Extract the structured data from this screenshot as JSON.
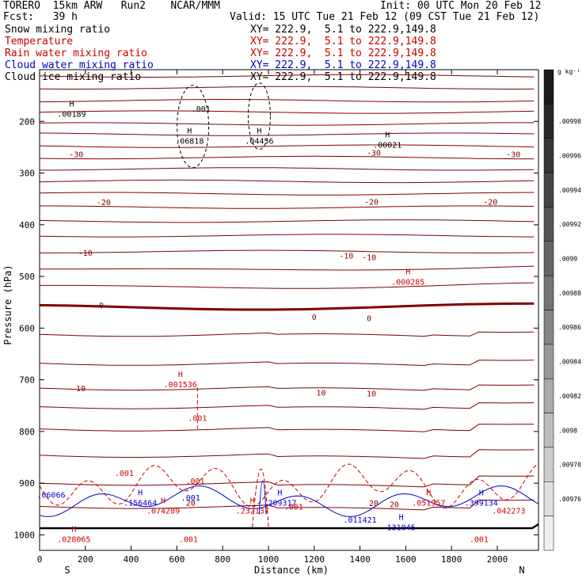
{
  "header": {
    "model": "TORERO  15km ARW   Run2    NCAR/MMM",
    "init": "Init: 00 UTC Mon 20 Feb 12",
    "fcst": "Fcst:   39 h",
    "valid": "Valid: 15 UTC Tue 21 Feb 12 (09 CST Tue 21 Feb 12)",
    "xy": "XY= 222.9,  5.1 to 222.9,149.8",
    "fields": [
      {
        "name": "Snow mixing ratio",
        "color": "#000000"
      },
      {
        "name": "Temperature",
        "color": "#cc0000"
      },
      {
        "name": "Rain water mixing ratio",
        "color": "#cc0000"
      },
      {
        "name": "Cloud water mixing ratio",
        "color": "#0000cc"
      },
      {
        "name": "Cloud ice mixing ratio",
        "color": "#000000"
      }
    ]
  },
  "chart_data": {
    "type": "contour-cross-section",
    "xlabel": "Distance (km)",
    "ylabel": "Pressure (hPa)",
    "xlim": [
      0,
      2180
    ],
    "ylim": [
      1030,
      100
    ],
    "x_ticks": [
      0,
      200,
      400,
      600,
      800,
      1000,
      1200,
      1400,
      1600,
      1800,
      2000
    ],
    "y_ticks": [
      200,
      300,
      400,
      500,
      600,
      700,
      800,
      900,
      1000
    ],
    "x_end_labels": {
      "left": "S",
      "right": "N"
    },
    "colorbar": {
      "unit": "g kg⁻¹",
      "labels": [
        ".00998",
        ".00996",
        ".00994",
        ".00992",
        ".0099",
        ".00988",
        ".00986",
        ".00984",
        ".00982",
        ".0098",
        ".00978",
        ".00976"
      ],
      "shades": [
        "#1a1a1a",
        "#282828",
        "#363636",
        "#454545",
        "#555555",
        "#656565",
        "#757575",
        "#868686",
        "#989898",
        "#aaaaaa",
        "#bcbcbc",
        "#cecece",
        "#e0e0e0",
        "#f0f0f0"
      ]
    },
    "temperature_labels": [
      {
        "text": "-30",
        "x": 160,
        "p": 263
      },
      {
        "text": "-30",
        "x": 1460,
        "p": 260
      },
      {
        "text": "-30",
        "x": 2070,
        "p": 263
      },
      {
        "text": "-20",
        "x": 280,
        "p": 356
      },
      {
        "text": "-20",
        "x": 1450,
        "p": 355
      },
      {
        "text": "-20",
        "x": 1970,
        "p": 355
      },
      {
        "text": "-10",
        "x": 200,
        "p": 454
      },
      {
        "text": "-10",
        "x": 1340,
        "p": 459
      },
      {
        "text": "-10",
        "x": 1440,
        "p": 462
      },
      {
        "text": "0",
        "x": 270,
        "p": 555
      },
      {
        "text": "0",
        "x": 1200,
        "p": 578
      },
      {
        "text": "0",
        "x": 1440,
        "p": 580
      },
      {
        "text": "10",
        "x": 180,
        "p": 716
      },
      {
        "text": "10",
        "x": 1230,
        "p": 724
      },
      {
        "text": "10",
        "x": 1450,
        "p": 726
      },
      {
        "text": "20",
        "x": 660,
        "p": 937
      },
      {
        "text": "20",
        "x": 1460,
        "p": 938
      },
      {
        "text": "20",
        "x": 1550,
        "p": 940
      }
    ],
    "maxima": [
      {
        "label": "H",
        "value": ".00189",
        "x": 140,
        "p": 185,
        "color": "#000000"
      },
      {
        "label": "",
        "value": ".001",
        "x": 705,
        "p": 175,
        "color": "#000000"
      },
      {
        "label": "H",
        "value": ".06818",
        "x": 655,
        "p": 237,
        "color": "#000000"
      },
      {
        "label": "H",
        "value": ".04456",
        "x": 960,
        "p": 237,
        "color": "#000000"
      },
      {
        "label": "H",
        "value": ".00021",
        "x": 1520,
        "p": 245,
        "color": "#000000"
      },
      {
        "label": "H",
        "value": ".000285",
        "x": 1610,
        "p": 510,
        "color": "#cc0000"
      },
      {
        "label": "H",
        "value": ".001536",
        "x": 615,
        "p": 708,
        "color": "#cc0000"
      },
      {
        "label": "",
        "value": ".001",
        "x": 690,
        "p": 773,
        "color": "#cc0000"
      },
      {
        "label": "",
        "value": ".001",
        "x": 370,
        "p": 880,
        "color": "#cc0000"
      },
      {
        "label": "",
        "value": ".001",
        "x": 680,
        "p": 895,
        "color": "#cc0000"
      },
      {
        "label": "H",
        "value": ".074289",
        "x": 540,
        "p": 953,
        "color": "#cc0000"
      },
      {
        "label": "H",
        "value": ".232137",
        "x": 930,
        "p": 953,
        "color": "#cc0000"
      },
      {
        "label": "",
        "value": ".001",
        "x": 1110,
        "p": 945,
        "color": "#cc0000"
      },
      {
        "label": "H",
        "value": ".051957",
        "x": 1700,
        "p": 937,
        "color": "#cc0000"
      },
      {
        "label": "",
        "value": ".042273",
        "x": 2050,
        "p": 953,
        "color": "#cc0000"
      },
      {
        "label": "H",
        "value": ".028065",
        "x": 150,
        "p": 1008,
        "color": "#cc0000"
      },
      {
        "label": "",
        "value": ".001",
        "x": 650,
        "p": 1008,
        "color": "#cc0000"
      },
      {
        "label": "",
        "value": ".001",
        "x": 1920,
        "p": 1008,
        "color": "#cc0000"
      },
      {
        "label": "",
        "value": ".06066",
        "x": 50,
        "p": 922,
        "color": "#0000cc"
      },
      {
        "label": "H",
        "value": ".156464",
        "x": 440,
        "p": 937,
        "color": "#0000cc"
      },
      {
        "label": "",
        "value": ".001",
        "x": 660,
        "p": 927,
        "color": "#0000cc"
      },
      {
        "label": "H",
        "value": ".209317",
        "x": 1050,
        "p": 937,
        "color": "#0000cc"
      },
      {
        "label": "",
        "value": ".011421",
        "x": 1400,
        "p": 970,
        "color": "#0000cc"
      },
      {
        "label": "H",
        "value": "131045",
        "x": 1580,
        "p": 985,
        "color": "#0000cc"
      },
      {
        "label": "H",
        "value": ".399134",
        "x": 1930,
        "p": 937,
        "color": "#0000cc"
      }
    ]
  }
}
